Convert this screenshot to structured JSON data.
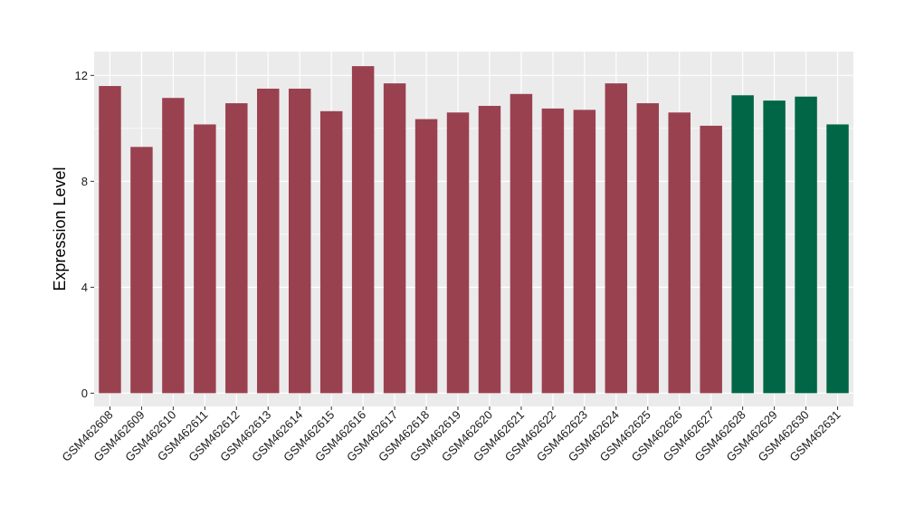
{
  "chart_data": {
    "type": "bar",
    "title": "",
    "xlabel": "",
    "ylabel": "Expression Level",
    "ylim": [
      -0.5,
      12.9
    ],
    "yticks": [
      0,
      4,
      8,
      12
    ],
    "grid": true,
    "legend": "none",
    "categories": [
      "GSM462608",
      "GSM462609",
      "GSM462610",
      "GSM462611",
      "GSM462612",
      "GSM462613",
      "GSM462614",
      "GSM462615",
      "GSM462616",
      "GSM462617",
      "GSM462618",
      "GSM462619",
      "GSM462620",
      "GSM462621",
      "GSM462622",
      "GSM462623",
      "GSM462624",
      "GSM462625",
      "GSM462626",
      "GSM462627",
      "GSM462628",
      "GSM462629",
      "GSM462630",
      "GSM462631"
    ],
    "values": [
      11.6,
      9.3,
      11.15,
      10.15,
      10.95,
      11.5,
      11.5,
      10.65,
      12.35,
      11.7,
      10.35,
      10.6,
      10.85,
      11.3,
      10.75,
      10.7,
      11.7,
      10.95,
      10.6,
      10.1,
      11.25,
      11.05,
      11.2,
      10.15
    ],
    "bar_colors": [
      "#9a4150",
      "#9a4150",
      "#9a4150",
      "#9a4150",
      "#9a4150",
      "#9a4150",
      "#9a4150",
      "#9a4150",
      "#9a4150",
      "#9a4150",
      "#9a4150",
      "#9a4150",
      "#9a4150",
      "#9a4150",
      "#9a4150",
      "#9a4150",
      "#9a4150",
      "#9a4150",
      "#9a4150",
      "#9a4150",
      "#006646",
      "#006646",
      "#006646",
      "#006646"
    ],
    "panel_background": "#ebebeb",
    "grid_color": "#ffffff"
  }
}
